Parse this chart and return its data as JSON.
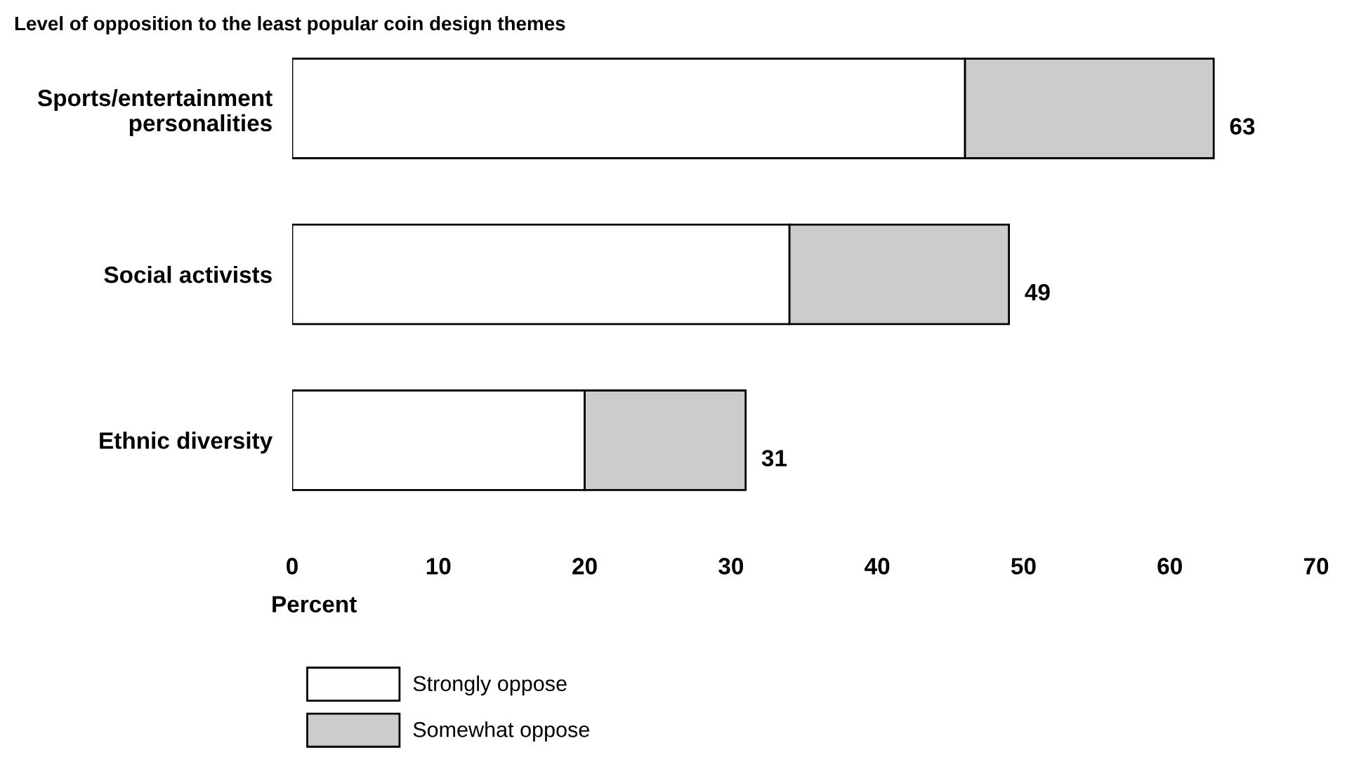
{
  "chart_data": {
    "type": "bar",
    "orientation": "horizontal",
    "stacked": true,
    "title": "Level of opposition to the least popular coin design themes",
    "xlabel": "Percent",
    "categories": [
      "Sports/entertainment\npersonalities",
      "Social activists",
      "Ethnic diversity"
    ],
    "series": [
      {
        "name": "Strongly oppose",
        "color": "#ffffff",
        "values": [
          46,
          34,
          20
        ]
      },
      {
        "name": "Somewhat oppose",
        "color": "#cccccc",
        "values": [
          17,
          15,
          11
        ]
      }
    ],
    "totals": [
      "63",
      "49",
      "31"
    ],
    "xlim": [
      0,
      70
    ],
    "xticks": [
      0,
      10,
      20,
      30,
      40,
      50,
      60,
      70
    ],
    "legend": "bottom",
    "grid": false
  }
}
